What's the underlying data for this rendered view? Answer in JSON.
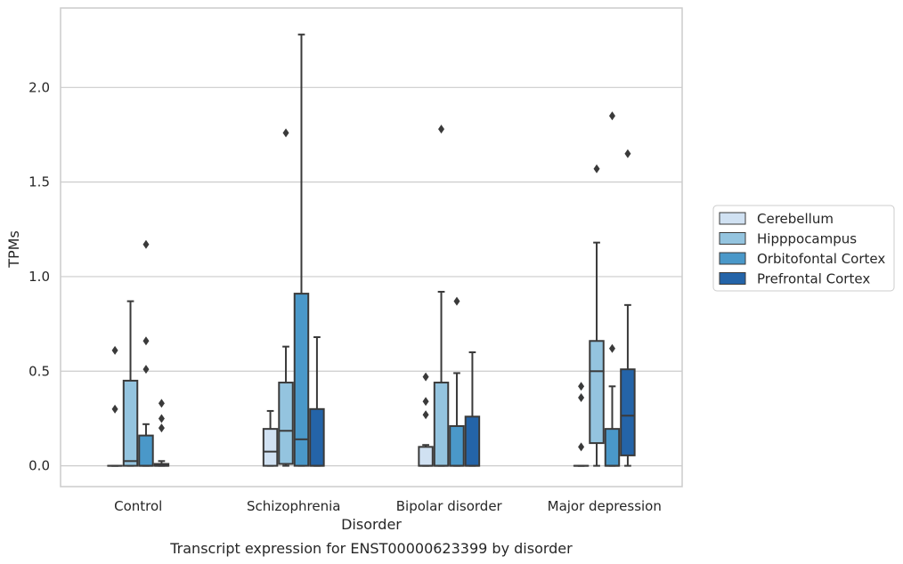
{
  "caption": "Transcript expression for ENST00000623399 by disorder",
  "chart_data": {
    "type": "box",
    "xlabel": "Disorder",
    "ylabel": "TPMs",
    "ylim": [
      -0.11,
      2.42
    ],
    "yticks": [
      0.0,
      0.5,
      1.0,
      1.5,
      2.0
    ],
    "ytick_labels": [
      "0.0",
      "0.5",
      "1.0",
      "1.5",
      "2.0"
    ],
    "grid": "horizontal",
    "legend_position": "right",
    "categories": [
      "Control",
      "Schizophrenia",
      "Bipolar disorder",
      "Major depression"
    ],
    "series": [
      {
        "name": "Cerebellum",
        "color": "#d0e1f2",
        "boxes": [
          {
            "q1": 0.0,
            "median": 0.0,
            "q3": 0.0,
            "whisker_low": 0.0,
            "whisker_high": 0.0,
            "outliers": [
              0.61,
              0.3
            ]
          },
          {
            "q1": 0.0,
            "median": 0.075,
            "q3": 0.195,
            "whisker_low": 0.0,
            "whisker_high": 0.29,
            "outliers": []
          },
          {
            "q1": 0.0,
            "median": 0.0,
            "q3": 0.1,
            "whisker_low": 0.0,
            "whisker_high": 0.11,
            "outliers": [
              0.47,
              0.34,
              0.27
            ]
          },
          {
            "q1": 0.0,
            "median": 0.0,
            "q3": 0.0,
            "whisker_low": 0.0,
            "whisker_high": 0.0,
            "outliers": [
              0.42,
              0.36,
              0.1
            ]
          }
        ]
      },
      {
        "name": "Hipppocampus",
        "color": "#94c4df",
        "boxes": [
          {
            "q1": 0.0,
            "median": 0.025,
            "q3": 0.45,
            "whisker_low": 0.0,
            "whisker_high": 0.87,
            "outliers": []
          },
          {
            "q1": 0.01,
            "median": 0.185,
            "q3": 0.44,
            "whisker_low": 0.0,
            "whisker_high": 0.63,
            "outliers": [
              1.76
            ]
          },
          {
            "q1": 0.0,
            "median": 0.0,
            "q3": 0.44,
            "whisker_low": 0.0,
            "whisker_high": 0.92,
            "outliers": [
              1.78
            ]
          },
          {
            "q1": 0.12,
            "median": 0.5,
            "q3": 0.66,
            "whisker_low": 0.0,
            "whisker_high": 1.18,
            "outliers": [
              1.57
            ]
          }
        ]
      },
      {
        "name": "Orbitofontal Cortex",
        "color": "#4a98c9",
        "boxes": [
          {
            "q1": 0.0,
            "median": 0.0,
            "q3": 0.16,
            "whisker_low": 0.0,
            "whisker_high": 0.22,
            "outliers": [
              1.17,
              0.66,
              0.51
            ]
          },
          {
            "q1": 0.0,
            "median": 0.14,
            "q3": 0.91,
            "whisker_low": 0.0,
            "whisker_high": 2.28,
            "outliers": []
          },
          {
            "q1": 0.0,
            "median": 0.0,
            "q3": 0.21,
            "whisker_low": 0.0,
            "whisker_high": 0.49,
            "outliers": [
              0.87
            ]
          },
          {
            "q1": 0.0,
            "median": 0.0,
            "q3": 0.195,
            "whisker_low": 0.0,
            "whisker_high": 0.42,
            "outliers": [
              1.85,
              0.62
            ]
          }
        ]
      },
      {
        "name": "Prefrontal Cortex",
        "color": "#2464a8",
        "boxes": [
          {
            "q1": 0.0,
            "median": 0.0,
            "q3": 0.01,
            "whisker_low": 0.0,
            "whisker_high": 0.025,
            "outliers": [
              0.33,
              0.25,
              0.2
            ]
          },
          {
            "q1": 0.0,
            "median": 0.0,
            "q3": 0.3,
            "whisker_low": 0.0,
            "whisker_high": 0.68,
            "outliers": []
          },
          {
            "q1": 0.0,
            "median": 0.0,
            "q3": 0.26,
            "whisker_low": 0.0,
            "whisker_high": 0.6,
            "outliers": []
          },
          {
            "q1": 0.055,
            "median": 0.265,
            "q3": 0.51,
            "whisker_low": 0.0,
            "whisker_high": 0.85,
            "outliers": [
              1.65
            ]
          }
        ]
      }
    ]
  }
}
